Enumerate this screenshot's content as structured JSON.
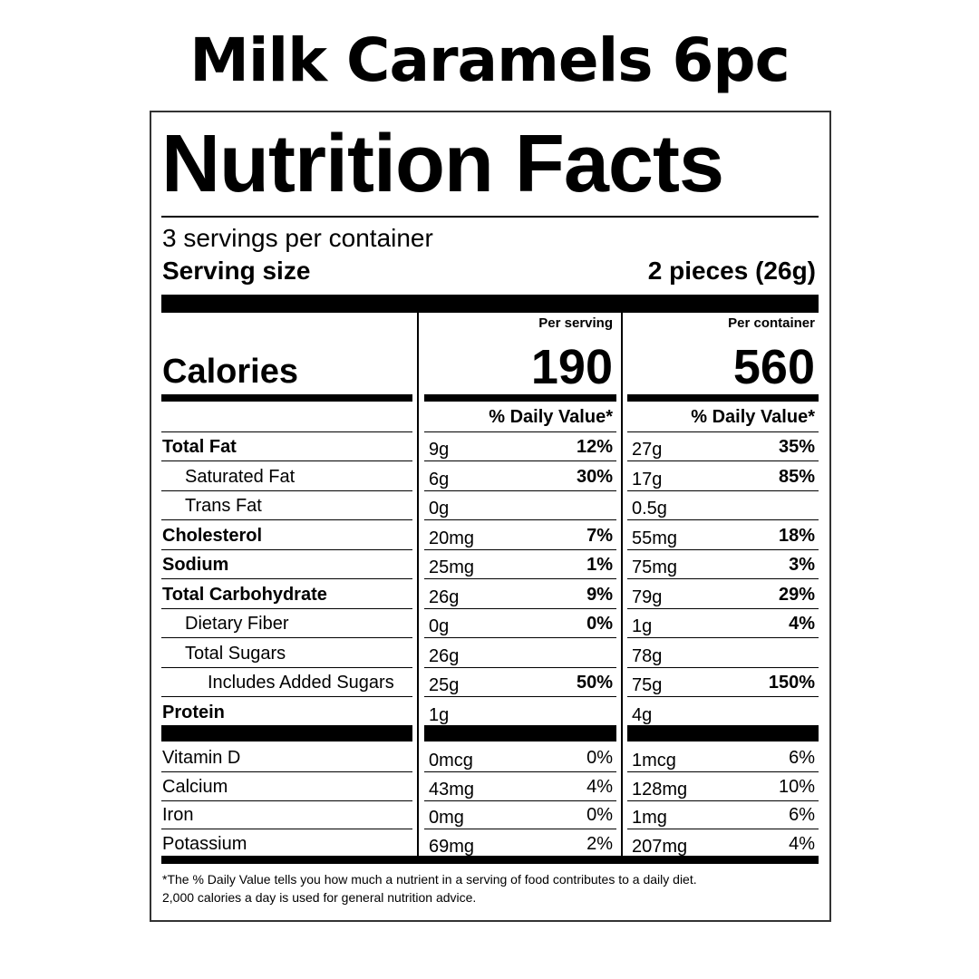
{
  "title": "Milk Caramels 6pc",
  "label": {
    "heading": "Nutrition Facts",
    "servings": "3 servings per container",
    "serving_size_label": "Serving size",
    "serving_size": "2 pieces (26g)",
    "calories_label": "Calories",
    "columns": [
      {
        "header": "Per serving",
        "calories": "190",
        "dv_header": "% Daily Value*"
      },
      {
        "header": "Per container",
        "calories": "560",
        "dv_header": "% Daily Value*"
      }
    ],
    "nutrients": [
      {
        "name": "Total Fat",
        "bold": true,
        "indent": 0,
        "amounts": [
          "9g",
          "27g"
        ],
        "dv": [
          "12%",
          "35%"
        ]
      },
      {
        "name": "Saturated Fat",
        "bold": false,
        "indent": 1,
        "amounts": [
          "6g",
          "17g"
        ],
        "dv": [
          "30%",
          "85%"
        ]
      },
      {
        "name": "Trans Fat",
        "bold": false,
        "indent": 1,
        "amounts": [
          "0g",
          "0.5g"
        ]
      },
      {
        "name": "Cholesterol",
        "bold": true,
        "indent": 0,
        "amounts": [
          "20mg",
          "55mg"
        ],
        "dv": [
          "7%",
          "18%"
        ]
      },
      {
        "name": "Sodium",
        "bold": true,
        "indent": 0,
        "amounts": [
          "25mg",
          "75mg"
        ],
        "dv": [
          "1%",
          "3%"
        ]
      },
      {
        "name": "Total Carbohydrate",
        "bold": true,
        "indent": 0,
        "amounts": [
          "26g",
          "79g"
        ],
        "dv": [
          "9%",
          "29%"
        ]
      },
      {
        "name": "Dietary Fiber",
        "bold": false,
        "indent": 1,
        "amounts": [
          "0g",
          "1g"
        ],
        "dv": [
          "0%",
          "4%"
        ]
      },
      {
        "name": "Total Sugars",
        "bold": false,
        "indent": 1,
        "amounts": [
          "26g",
          "78g"
        ]
      },
      {
        "name": "Includes Added Sugars",
        "bold": false,
        "indent": 2,
        "amounts": [
          "25g",
          "75g"
        ],
        "dv": [
          "50%",
          "150%"
        ]
      },
      {
        "name": "Protein",
        "bold": true,
        "indent": 0,
        "amounts": [
          "1g",
          "4g"
        ]
      }
    ],
    "vitamins": [
      {
        "name": "Vitamin D",
        "amounts": [
          "0mcg",
          "1mcg"
        ],
        "dv": [
          "0%",
          "6%"
        ]
      },
      {
        "name": "Calcium",
        "amounts": [
          "43mg",
          "128mg"
        ],
        "dv": [
          "4%",
          "10%"
        ]
      },
      {
        "name": "Iron",
        "amounts": [
          "0mg",
          "1mg"
        ],
        "dv": [
          "0%",
          "6%"
        ]
      },
      {
        "name": "Potassium",
        "amounts": [
          "69mg",
          "207mg"
        ],
        "dv": [
          "2%",
          "4%"
        ]
      }
    ],
    "footnote": [
      "*The % Daily Value tells you how much a nutrient in a serving of food contributes to a daily diet.",
      "2,000 calories a day is used for general nutrition advice."
    ]
  }
}
